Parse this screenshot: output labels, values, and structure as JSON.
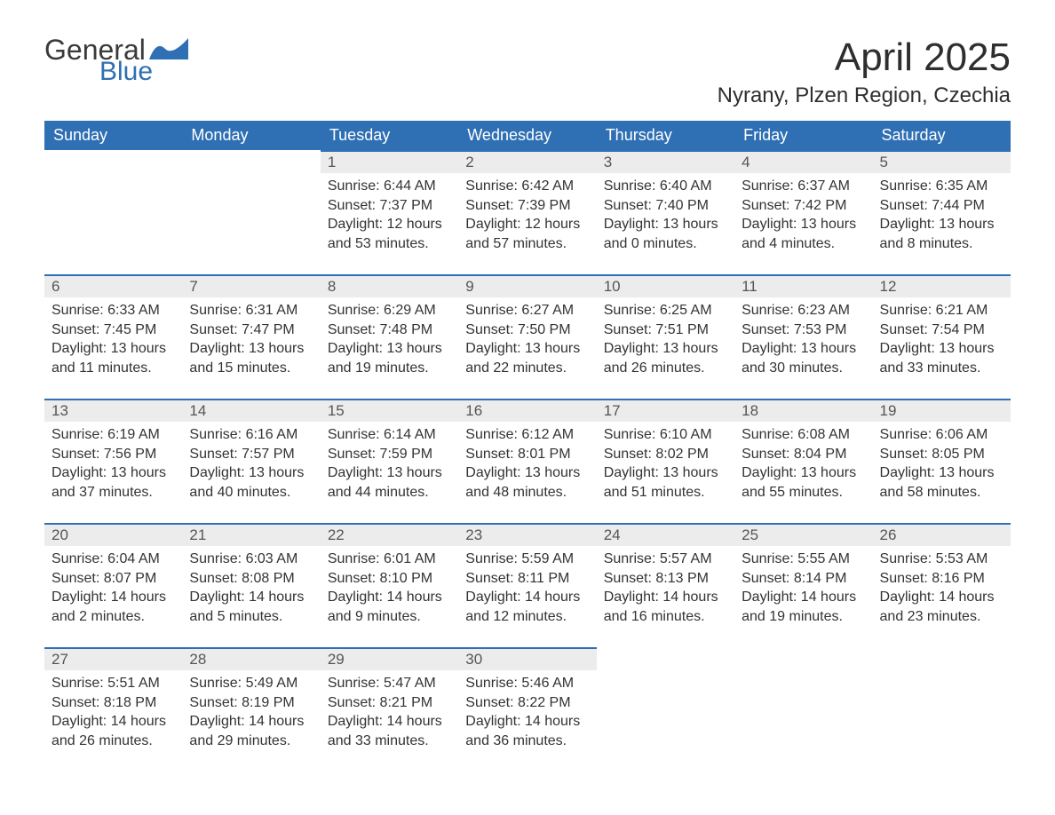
{
  "logo": {
    "general": "General",
    "blue": "Blue",
    "general_color": "#3a3a3a",
    "blue_color": "#2f6fb3",
    "wave_color": "#2f6fb3"
  },
  "header": {
    "title": "April 2025",
    "location": "Nyrany, Plzen Region, Czechia",
    "title_fontsize": 44,
    "location_fontsize": 24,
    "text_color": "#2e2e2e"
  },
  "calendar_style": {
    "header_bg": "#2f6fb3",
    "header_text_color": "#ffffff",
    "header_fontsize": 18,
    "daynum_bg": "#ececec",
    "daynum_border_top": "#2f6fb3",
    "daynum_color": "#555555",
    "daynum_fontsize": 17,
    "body_fontsize": 16,
    "body_color": "#333333",
    "background": "#ffffff"
  },
  "days_of_week": [
    "Sunday",
    "Monday",
    "Tuesday",
    "Wednesday",
    "Thursday",
    "Friday",
    "Saturday"
  ],
  "labels": {
    "sunrise": "Sunrise:",
    "sunset": "Sunset:",
    "daylight": "Daylight:"
  },
  "weeks": [
    [
      null,
      null,
      {
        "num": "1",
        "sunrise": "6:44 AM",
        "sunset": "7:37 PM",
        "daylight": "12 hours and 53 minutes."
      },
      {
        "num": "2",
        "sunrise": "6:42 AM",
        "sunset": "7:39 PM",
        "daylight": "12 hours and 57 minutes."
      },
      {
        "num": "3",
        "sunrise": "6:40 AM",
        "sunset": "7:40 PM",
        "daylight": "13 hours and 0 minutes."
      },
      {
        "num": "4",
        "sunrise": "6:37 AM",
        "sunset": "7:42 PM",
        "daylight": "13 hours and 4 minutes."
      },
      {
        "num": "5",
        "sunrise": "6:35 AM",
        "sunset": "7:44 PM",
        "daylight": "13 hours and 8 minutes."
      }
    ],
    [
      {
        "num": "6",
        "sunrise": "6:33 AM",
        "sunset": "7:45 PM",
        "daylight": "13 hours and 11 minutes."
      },
      {
        "num": "7",
        "sunrise": "6:31 AM",
        "sunset": "7:47 PM",
        "daylight": "13 hours and 15 minutes."
      },
      {
        "num": "8",
        "sunrise": "6:29 AM",
        "sunset": "7:48 PM",
        "daylight": "13 hours and 19 minutes."
      },
      {
        "num": "9",
        "sunrise": "6:27 AM",
        "sunset": "7:50 PM",
        "daylight": "13 hours and 22 minutes."
      },
      {
        "num": "10",
        "sunrise": "6:25 AM",
        "sunset": "7:51 PM",
        "daylight": "13 hours and 26 minutes."
      },
      {
        "num": "11",
        "sunrise": "6:23 AM",
        "sunset": "7:53 PM",
        "daylight": "13 hours and 30 minutes."
      },
      {
        "num": "12",
        "sunrise": "6:21 AM",
        "sunset": "7:54 PM",
        "daylight": "13 hours and 33 minutes."
      }
    ],
    [
      {
        "num": "13",
        "sunrise": "6:19 AM",
        "sunset": "7:56 PM",
        "daylight": "13 hours and 37 minutes."
      },
      {
        "num": "14",
        "sunrise": "6:16 AM",
        "sunset": "7:57 PM",
        "daylight": "13 hours and 40 minutes."
      },
      {
        "num": "15",
        "sunrise": "6:14 AM",
        "sunset": "7:59 PM",
        "daylight": "13 hours and 44 minutes."
      },
      {
        "num": "16",
        "sunrise": "6:12 AM",
        "sunset": "8:01 PM",
        "daylight": "13 hours and 48 minutes."
      },
      {
        "num": "17",
        "sunrise": "6:10 AM",
        "sunset": "8:02 PM",
        "daylight": "13 hours and 51 minutes."
      },
      {
        "num": "18",
        "sunrise": "6:08 AM",
        "sunset": "8:04 PM",
        "daylight": "13 hours and 55 minutes."
      },
      {
        "num": "19",
        "sunrise": "6:06 AM",
        "sunset": "8:05 PM",
        "daylight": "13 hours and 58 minutes."
      }
    ],
    [
      {
        "num": "20",
        "sunrise": "6:04 AM",
        "sunset": "8:07 PM",
        "daylight": "14 hours and 2 minutes."
      },
      {
        "num": "21",
        "sunrise": "6:03 AM",
        "sunset": "8:08 PM",
        "daylight": "14 hours and 5 minutes."
      },
      {
        "num": "22",
        "sunrise": "6:01 AM",
        "sunset": "8:10 PM",
        "daylight": "14 hours and 9 minutes."
      },
      {
        "num": "23",
        "sunrise": "5:59 AM",
        "sunset": "8:11 PM",
        "daylight": "14 hours and 12 minutes."
      },
      {
        "num": "24",
        "sunrise": "5:57 AM",
        "sunset": "8:13 PM",
        "daylight": "14 hours and 16 minutes."
      },
      {
        "num": "25",
        "sunrise": "5:55 AM",
        "sunset": "8:14 PM",
        "daylight": "14 hours and 19 minutes."
      },
      {
        "num": "26",
        "sunrise": "5:53 AM",
        "sunset": "8:16 PM",
        "daylight": "14 hours and 23 minutes."
      }
    ],
    [
      {
        "num": "27",
        "sunrise": "5:51 AM",
        "sunset": "8:18 PM",
        "daylight": "14 hours and 26 minutes."
      },
      {
        "num": "28",
        "sunrise": "5:49 AM",
        "sunset": "8:19 PM",
        "daylight": "14 hours and 29 minutes."
      },
      {
        "num": "29",
        "sunrise": "5:47 AM",
        "sunset": "8:21 PM",
        "daylight": "14 hours and 33 minutes."
      },
      {
        "num": "30",
        "sunrise": "5:46 AM",
        "sunset": "8:22 PM",
        "daylight": "14 hours and 36 minutes."
      },
      null,
      null,
      null
    ]
  ]
}
